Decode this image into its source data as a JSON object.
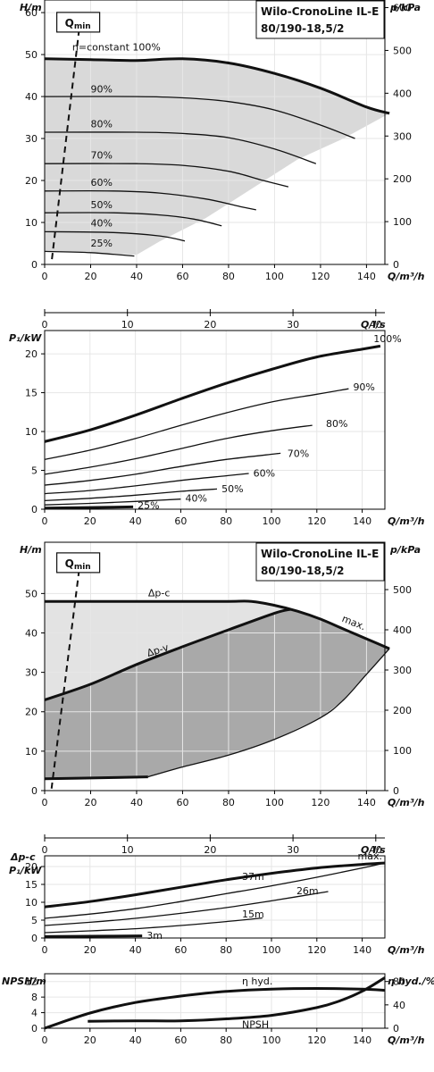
{
  "chart_data": [
    {
      "id": "hq_speed",
      "type": "line",
      "title": "Wilo-CronoLine IL-E",
      "subtitle": "80/190-18,5/2",
      "ylabel": "H/m",
      "y2label": "p/kPa",
      "xlabel": "Q/m³/h",
      "ylim": [
        0,
        63
      ],
      "xlim": [
        0,
        148
      ],
      "yticks": [
        0,
        10,
        20,
        30,
        40,
        50,
        60
      ],
      "y2ticks": [
        0,
        100,
        200,
        300,
        400,
        500,
        600
      ],
      "xticks": [
        0,
        20,
        40,
        60,
        80,
        100,
        120,
        140
      ],
      "qmin_label": "Q",
      "qmin_sub": "min",
      "series": [
        {
          "name": "n=constant 100%",
          "x": [
            0,
            20,
            40,
            60,
            80,
            100,
            120,
            140,
            150
          ],
          "y": [
            49,
            48.8,
            48.6,
            49,
            48,
            45.5,
            42,
            37.5,
            36
          ]
        },
        {
          "name": "90%",
          "x": [
            0,
            40,
            60,
            80,
            100,
            120,
            135
          ],
          "y": [
            40,
            40,
            39.7,
            38.8,
            36.8,
            33.2,
            30
          ]
        },
        {
          "name": "80%",
          "x": [
            0,
            40,
            60,
            80,
            100,
            118
          ],
          "y": [
            31.5,
            31.5,
            31.2,
            30.2,
            27.5,
            24
          ]
        },
        {
          "name": "70%",
          "x": [
            0,
            40,
            60,
            80,
            95,
            106
          ],
          "y": [
            24,
            24,
            23.6,
            22.2,
            20,
            18.5
          ]
        },
        {
          "name": "60%",
          "x": [
            0,
            30,
            50,
            70,
            85,
            92
          ],
          "y": [
            17.5,
            17.5,
            17,
            15.6,
            13.8,
            13
          ]
        },
        {
          "name": "50%",
          "x": [
            0,
            30,
            50,
            65,
            77
          ],
          "y": [
            12.3,
            12.3,
            11.8,
            10.8,
            9.2
          ]
        },
        {
          "name": "40%",
          "x": [
            0,
            30,
            50,
            61
          ],
          "y": [
            7.8,
            7.6,
            6.8,
            5.6
          ]
        },
        {
          "name": "25%",
          "x": [
            0,
            20,
            39
          ],
          "y": [
            3.1,
            2.8,
            2
          ]
        }
      ],
      "series_labels": [
        "n=constant 100%",
        "90%",
        "80%",
        "70%",
        "60%",
        "50%",
        "40%",
        "25%"
      ],
      "envelope_x": [
        0,
        20,
        40,
        60,
        80,
        100,
        120,
        140,
        150,
        130,
        110,
        90,
        70,
        50,
        40,
        20,
        0
      ],
      "envelope_y": [
        49,
        48.8,
        48.6,
        49,
        48,
        45.5,
        42,
        37.5,
        36,
        30,
        25,
        18,
        11,
        5.5,
        2.3,
        2.8,
        3.1
      ],
      "qmin_line_x": [
        15,
        3
      ],
      "qmin_line_y": [
        56,
        0.5
      ]
    },
    {
      "id": "ql_axis",
      "type": "line",
      "xlabel": "Q/l/s",
      "xlim": [
        0,
        41.1
      ],
      "xticks": [
        0,
        10,
        20,
        30,
        40
      ]
    },
    {
      "id": "p1_speed",
      "type": "line",
      "ylabel": "P₁/kW",
      "xlabel": "Q/m³/h",
      "ylim": [
        0,
        23
      ],
      "xlim": [
        0,
        150
      ],
      "yticks": [
        0,
        5,
        10,
        15,
        20
      ],
      "xticks": [
        0,
        20,
        40,
        60,
        80,
        100,
        120,
        140
      ],
      "series": [
        {
          "name": "100%",
          "x": [
            0,
            20,
            40,
            60,
            80,
            100,
            120,
            140,
            148
          ],
          "y": [
            8.7,
            10.2,
            12.1,
            14.2,
            16.2,
            18,
            19.6,
            20.6,
            21
          ]
        },
        {
          "name": "90%",
          "x": [
            0,
            20,
            40,
            60,
            80,
            100,
            120,
            134
          ],
          "y": [
            6.4,
            7.6,
            9.1,
            10.8,
            12.4,
            13.8,
            14.8,
            15.5
          ]
        },
        {
          "name": "80%",
          "x": [
            0,
            20,
            40,
            60,
            80,
            100,
            118
          ],
          "y": [
            4.5,
            5.4,
            6.5,
            7.8,
            9.1,
            10.1,
            10.8
          ]
        },
        {
          "name": "70%",
          "x": [
            0,
            20,
            40,
            60,
            80,
            104
          ],
          "y": [
            3.1,
            3.7,
            4.5,
            5.5,
            6.4,
            7.2
          ]
        },
        {
          "name": "60%",
          "x": [
            0,
            20,
            40,
            60,
            80,
            90
          ],
          "y": [
            2,
            2.4,
            3,
            3.7,
            4.3,
            4.6
          ]
        },
        {
          "name": "50%",
          "x": [
            0,
            20,
            40,
            60,
            76
          ],
          "y": [
            1.1,
            1.4,
            1.8,
            2.3,
            2.6
          ]
        },
        {
          "name": "40%",
          "x": [
            0,
            20,
            40,
            60
          ],
          "y": [
            0.55,
            0.75,
            1,
            1.3
          ]
        },
        {
          "name": "25%",
          "x": [
            0,
            20,
            39
          ],
          "y": [
            0.15,
            0.22,
            0.3
          ]
        }
      ],
      "series_labels": [
        "100%",
        "90%",
        "80%",
        "70%",
        "60%",
        "50%",
        "40%",
        "25%"
      ]
    },
    {
      "id": "hq_dp",
      "type": "area",
      "title": "Wilo-CronoLine IL-E",
      "subtitle": "80/190-18,5/2",
      "ylabel": "H/m",
      "y2label": "p/kPa",
      "xlabel": "Q/m³/h",
      "ylim": [
        0,
        63
      ],
      "xlim": [
        0,
        148
      ],
      "yticks": [
        0,
        10,
        20,
        30,
        40,
        50
      ],
      "y2ticks": [
        0,
        100,
        200,
        300,
        400,
        500
      ],
      "xticks": [
        0,
        20,
        40,
        60,
        80,
        100,
        120,
        140
      ],
      "qmin_label": "Q",
      "qmin_sub": "min",
      "labels": {
        "dpc": "Δp-c",
        "dpv": "Δp-v",
        "max": "max."
      },
      "dpc_x": [
        0,
        20,
        40,
        60,
        80,
        90,
        100,
        110,
        120,
        130,
        140,
        150
      ],
      "dpc_y": [
        48,
        48,
        48,
        48,
        48,
        48,
        47,
        45.5,
        43.5,
        41,
        38.5,
        36
      ],
      "dpv_x": [
        0,
        20,
        40,
        60,
        80,
        100,
        107
      ],
      "dpv_y": [
        23,
        27,
        32,
        36.5,
        40.8,
        45,
        46
      ],
      "dark_x": [
        0,
        20,
        40,
        60,
        80,
        100,
        107,
        110,
        120,
        130,
        140,
        150,
        140,
        130,
        120,
        100,
        80,
        60,
        45,
        20,
        0
      ],
      "dark_y": [
        23,
        27,
        32,
        36.5,
        40.8,
        45,
        46,
        45.5,
        43.5,
        41,
        38.5,
        36,
        29.5,
        23,
        18.5,
        13,
        9,
        6,
        3.5,
        3.5,
        3
      ],
      "bottom_x": [
        0,
        20,
        45
      ],
      "bottom_y": [
        3,
        3.2,
        3.5
      ],
      "qmin_line_x": [
        15,
        3
      ],
      "qmin_line_y": [
        56,
        0.5
      ]
    },
    {
      "id": "ql_axis2",
      "type": "line",
      "xlabel": "Q/l/s",
      "xlim": [
        0,
        41.1
      ],
      "xticks": [
        0,
        10,
        20,
        30,
        40
      ]
    },
    {
      "id": "p1_dp",
      "type": "line",
      "ylabel": "Δp-c",
      "ylabel2": "P₁/kW",
      "xlabel": "Q/m³/h",
      "ylim": [
        0,
        23
      ],
      "xlim": [
        0,
        150
      ],
      "yticks": [
        0,
        5,
        10,
        15,
        20
      ],
      "xticks": [
        0,
        20,
        40,
        60,
        80,
        100,
        120,
        140
      ],
      "series": [
        {
          "name": "max.",
          "x": [
            0,
            20,
            40,
            60,
            80,
            100,
            120,
            140,
            150
          ],
          "y": [
            8.7,
            10.2,
            12.1,
            14.2,
            16.3,
            18.1,
            19.6,
            20.6,
            21
          ]
        },
        {
          "name": "37m",
          "x": [
            0,
            20,
            40,
            60,
            80,
            100,
            120,
            140,
            150
          ],
          "y": [
            5.5,
            6.7,
            8.2,
            10.2,
            12.4,
            14.6,
            17,
            19.6,
            21
          ]
        },
        {
          "name": "26m",
          "x": [
            0,
            20,
            40,
            60,
            80,
            100,
            125
          ],
          "y": [
            3.5,
            4.4,
            5.5,
            6.9,
            8.5,
            10.4,
            13
          ]
        },
        {
          "name": "15m",
          "x": [
            0,
            20,
            40,
            60,
            80,
            96
          ],
          "y": [
            1.5,
            2,
            2.6,
            3.5,
            4.6,
            5.6
          ]
        },
        {
          "name": "3m",
          "x": [
            0,
            20,
            43
          ],
          "y": [
            0.4,
            0.5,
            0.6
          ]
        }
      ],
      "series_labels": [
        "max.",
        "37m",
        "26m",
        "15m",
        "3m"
      ]
    },
    {
      "id": "npsh_eta",
      "type": "line",
      "ylabel": "NPSH/m",
      "y2label": "η hyd./%",
      "xlabel": "Q/m³/h",
      "ylim": [
        0,
        14
      ],
      "y2lim": [
        0,
        93.3
      ],
      "xlim": [
        0,
        150
      ],
      "yticks": [
        0,
        4,
        8,
        12
      ],
      "y2ticks": [
        0,
        40,
        80
      ],
      "xticks": [
        0,
        20,
        40,
        60,
        80,
        100,
        120,
        140
      ],
      "series": [
        {
          "name": "η hyd.",
          "axis": "y2",
          "x": [
            0,
            20,
            40,
            60,
            80,
            100,
            120,
            140,
            150
          ],
          "y": [
            0,
            26,
            44,
            55,
            63,
            67,
            68,
            67,
            65
          ]
        },
        {
          "name": "NPSH",
          "axis": "y",
          "x": [
            19,
            40,
            60,
            80,
            100,
            120,
            130,
            140,
            150
          ],
          "y": [
            1.8,
            1.9,
            1.9,
            2.4,
            3.3,
            5.3,
            7,
            9.5,
            13
          ]
        }
      ],
      "series_labels": [
        "η hyd.",
        "NPSH"
      ]
    }
  ]
}
